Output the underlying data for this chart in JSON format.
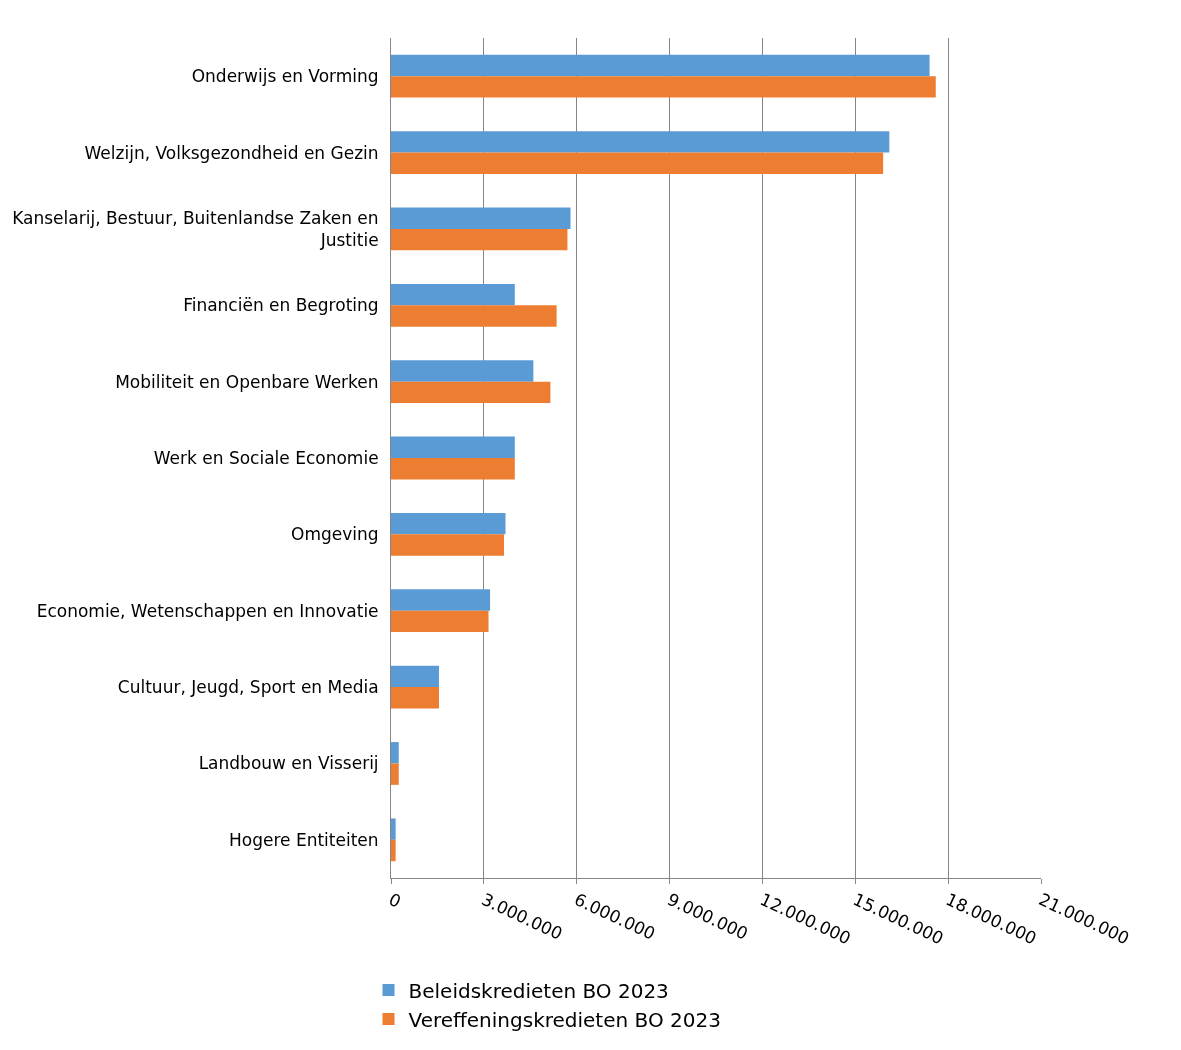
{
  "chart_data": {
    "type": "bar",
    "orientation": "horizontal",
    "categories": [
      "Onderwijs en Vorming",
      "Welzijn, Volksgezondheid en Gezin",
      "Kanselarij, Bestuur, Buitenlandse Zaken en Justitie",
      "Financiën en Begroting",
      "Mobiliteit en Openbare Werken",
      "Werk en Sociale Economie",
      "Omgeving",
      "Economie, Wetenschappen en Innovatie",
      "Cultuur, Jeugd, Sport en Media",
      "Landbouw en Visserij",
      "Hogere Entiteiten"
    ],
    "series": [
      {
        "name": "Beleidskredieten BO 2023",
        "color": "#5b9bd5",
        "values": [
          17400000,
          16100000,
          5800000,
          4000000,
          4600000,
          4000000,
          3700000,
          3200000,
          1550000,
          250000,
          150000
        ]
      },
      {
        "name": "Vereffeningskredieten BO 2023",
        "color": "#ed7d31",
        "values": [
          17600000,
          15900000,
          5700000,
          5350000,
          5150000,
          4000000,
          3650000,
          3150000,
          1550000,
          250000,
          150000
        ]
      }
    ],
    "xlim": [
      0,
      21000000
    ],
    "xticks": [
      0,
      {
        "value": 3000000,
        "label": "3.000.000"
      },
      {
        "value": 6000000,
        "label": "6.000.000"
      },
      {
        "value": 9000000,
        "label": "9.000.000"
      },
      {
        "value": 12000000,
        "label": "12.000.000"
      },
      {
        "value": 15000000,
        "label": "15.000.000"
      },
      {
        "value": 18000000,
        "label": "18.000.000"
      },
      {
        "value": 21000000,
        "label": "21.000.000"
      }
    ],
    "grid": "x",
    "legend": "bottom"
  }
}
